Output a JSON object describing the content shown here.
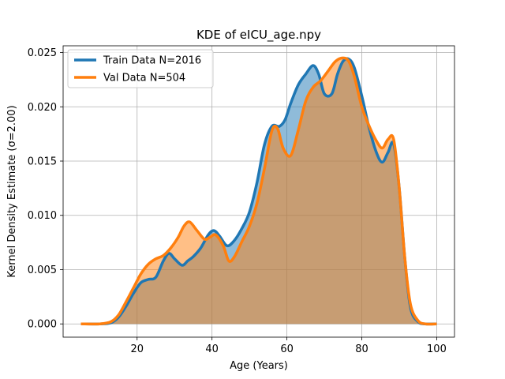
{
  "chart_data": {
    "type": "area",
    "title": "KDE of eICU_age.npy",
    "xlabel": "Age (Years)",
    "ylabel": "Kernel Density Estimate (σ=2.00)",
    "xlim": [
      0.25,
      104.75
    ],
    "ylim": [
      -0.00122,
      0.02562
    ],
    "xticks": [
      20,
      40,
      60,
      80,
      100
    ],
    "yticks": [
      0.0,
      0.005,
      0.01,
      0.015,
      0.02,
      0.025
    ],
    "xtick_labels": [
      "20",
      "40",
      "60",
      "80",
      "100"
    ],
    "ytick_labels": [
      "0.000",
      "0.005",
      "0.010",
      "0.015",
      "0.020",
      "0.025"
    ],
    "grid": true,
    "legend_position": "top-left",
    "series": [
      {
        "name": "Train Data N=2016",
        "color": "#1f77b4",
        "fill_color": "#1f77b4",
        "x": [
          5,
          10,
          13,
          15,
          17,
          19,
          21,
          23,
          25,
          27,
          28.5,
          30,
          32,
          33.5,
          35,
          37,
          39,
          40.5,
          42,
          44,
          46,
          48,
          50,
          52,
          54,
          56,
          58,
          59.5,
          61,
          63,
          65,
          67,
          68.5,
          70,
          72,
          73.5,
          75,
          76.5,
          78,
          80,
          82,
          84,
          85.5,
          87,
          88.5,
          90,
          91.5,
          93,
          95,
          97,
          100
        ],
        "y": [
          0.0,
          0.0,
          0.0001,
          0.0006,
          0.0016,
          0.0028,
          0.0038,
          0.0041,
          0.0043,
          0.0058,
          0.0065,
          0.006,
          0.0054,
          0.0058,
          0.0062,
          0.007,
          0.0082,
          0.0086,
          0.0081,
          0.0072,
          0.0077,
          0.0088,
          0.0103,
          0.013,
          0.0165,
          0.0182,
          0.0182,
          0.0188,
          0.0203,
          0.022,
          0.023,
          0.0238,
          0.023,
          0.0212,
          0.0212,
          0.023,
          0.0242,
          0.0244,
          0.0236,
          0.021,
          0.018,
          0.0157,
          0.0149,
          0.0158,
          0.0166,
          0.0125,
          0.006,
          0.0015,
          0.0002,
          0.0,
          0.0
        ]
      },
      {
        "name": "Val Data N=504",
        "color": "#ff7f0e",
        "fill_color": "#ff7f0e",
        "x": [
          5,
          10,
          13,
          15,
          17,
          19,
          21,
          23,
          25,
          27,
          29,
          31,
          32.5,
          34,
          36,
          38,
          39.5,
          41,
          43,
          44.5,
          46,
          48,
          50,
          52,
          54,
          56,
          57.5,
          59,
          61,
          63,
          65,
          67,
          69,
          71,
          73,
          75,
          76.5,
          78,
          80,
          82,
          84,
          85.5,
          87,
          88.5,
          90,
          91.5,
          93,
          95,
          97,
          100
        ],
        "y": [
          0.0,
          0.0,
          0.0002,
          0.0008,
          0.002,
          0.0033,
          0.0046,
          0.0055,
          0.006,
          0.0063,
          0.007,
          0.008,
          0.009,
          0.0094,
          0.0086,
          0.0078,
          0.008,
          0.0082,
          0.0072,
          0.0058,
          0.0062,
          0.0076,
          0.009,
          0.0111,
          0.0143,
          0.0178,
          0.018,
          0.0162,
          0.0155,
          0.0178,
          0.0205,
          0.0218,
          0.0224,
          0.0233,
          0.0242,
          0.0245,
          0.0242,
          0.0228,
          0.02,
          0.0182,
          0.0168,
          0.0162,
          0.017,
          0.017,
          0.0125,
          0.006,
          0.0018,
          0.0003,
          0.0,
          0.0
        ]
      }
    ]
  }
}
